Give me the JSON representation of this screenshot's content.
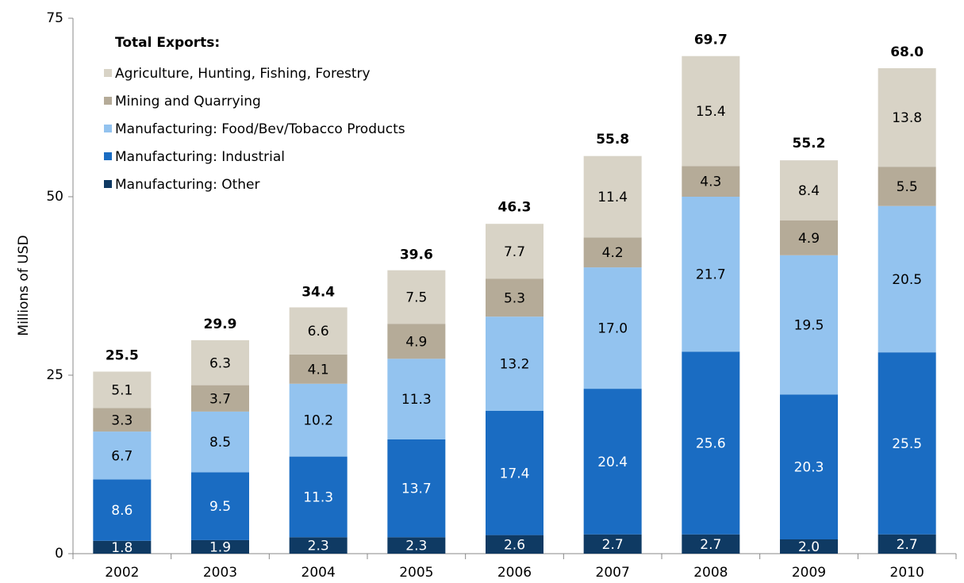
{
  "chart_data": {
    "type": "stacked_bar",
    "y_label": "Millions of USD",
    "legend_title": "Total Exports:",
    "categories": [
      "2002",
      "2003",
      "2004",
      "2005",
      "2006",
      "2007",
      "2008",
      "2009",
      "2010"
    ],
    "series": [
      {
        "name": "Manufacturing: Other",
        "color": "#0f3a63",
        "label_color": "#ffffff",
        "values": [
          1.8,
          1.9,
          2.3,
          2.3,
          2.6,
          2.7,
          2.7,
          2.0,
          2.7
        ],
        "value_labels": [
          "1.8",
          "1.9",
          "2.3",
          "2.3",
          "2.6",
          "2.7",
          "2.7",
          "2.0",
          "2.7"
        ]
      },
      {
        "name": "Manufacturing: Industrial",
        "color": "#1a6cc2",
        "label_color": "#ffffff",
        "values": [
          8.6,
          9.5,
          11.3,
          13.7,
          17.4,
          20.4,
          25.6,
          20.3,
          25.5
        ],
        "value_labels": [
          "8.6",
          "9.5",
          "11.3",
          "13.7",
          "17.4",
          "20.4",
          "25.6",
          "20.3",
          "25.5"
        ]
      },
      {
        "name": "Manufacturing: Food/Bev/Tobacco Products",
        "color": "#93c3ef",
        "label_color": "#000000",
        "values": [
          6.7,
          8.5,
          10.2,
          11.3,
          13.2,
          17.0,
          21.7,
          19.5,
          20.5
        ],
        "value_labels": [
          "6.7",
          "8.5",
          "10.2",
          "11.3",
          "13.2",
          "17.0",
          "21.7",
          "19.5",
          "20.5"
        ]
      },
      {
        "name": "Mining and Quarrying",
        "color": "#b5ab98",
        "label_color": "#000000",
        "values": [
          3.3,
          3.7,
          4.1,
          4.9,
          5.3,
          4.2,
          4.3,
          4.9,
          5.5
        ],
        "value_labels": [
          "3.3",
          "3.7",
          "4.1",
          "4.9",
          "5.3",
          "4.2",
          "4.3",
          "4.9",
          "5.5"
        ]
      },
      {
        "name": "Agriculture, Hunting, Fishing, Forestry",
        "color": "#d8d3c6",
        "label_color": "#000000",
        "values": [
          5.1,
          6.3,
          6.6,
          7.5,
          7.7,
          11.4,
          15.4,
          8.4,
          13.8
        ],
        "value_labels": [
          "5.1",
          "6.3",
          "6.6",
          "7.5",
          "7.7",
          "11.4",
          "15.4",
          "8.4",
          "13.8"
        ]
      }
    ],
    "totals": [
      25.5,
      29.9,
      34.4,
      39.6,
      46.3,
      55.8,
      69.7,
      55.2,
      68.0
    ],
    "total_labels": [
      "25.5",
      "29.9",
      "34.4",
      "39.6",
      "46.3",
      "55.8",
      "69.7",
      "55.2",
      "68.0"
    ],
    "ylim": [
      0,
      75
    ],
    "yticks": [
      0,
      25,
      50,
      75
    ],
    "grid": false
  }
}
